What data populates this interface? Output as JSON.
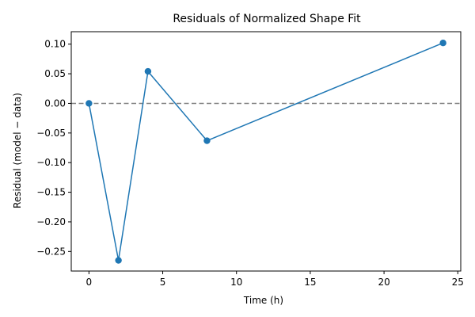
{
  "chart_data": {
    "type": "line",
    "title": "Residuals of Normalized Shape Fit",
    "xlabel": "Time (h)",
    "ylabel": "Residual (model − data)",
    "x": [
      0,
      2,
      4,
      8,
      24
    ],
    "series": [
      {
        "values": [
          0.0,
          -0.265,
          0.054,
          -0.063,
          0.102
        ]
      }
    ],
    "xlim": [
      -1.2,
      25.2
    ],
    "ylim": [
      -0.283,
      0.121
    ],
    "xticks": [
      0,
      5,
      10,
      15,
      20,
      25
    ],
    "xtick_labels": [
      "0",
      "5",
      "10",
      "15",
      "20",
      "25"
    ],
    "yticks": [
      0.1,
      0.05,
      0.0,
      -0.05,
      -0.1,
      -0.15,
      -0.2,
      -0.25
    ],
    "ytick_labels": [
      "0.10",
      "0.05",
      "0.00",
      "−0.05",
      "−0.10",
      "−0.15",
      "−0.20",
      "−0.25"
    ],
    "reference_line": {
      "y": 0.0,
      "style": "dashed",
      "color": "#808080"
    },
    "grid": false,
    "legend": "none",
    "colors": {
      "series": "#1f77b4",
      "axis": "#000000"
    }
  }
}
